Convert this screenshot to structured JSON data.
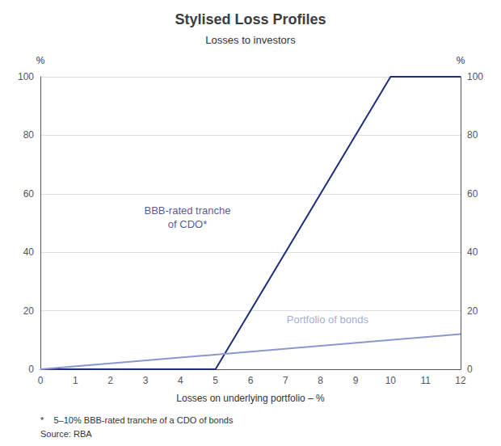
{
  "chart_data": {
    "type": "line",
    "title": "Stylised Loss Profiles",
    "subtitle": "Losses to investors",
    "xlabel": "Losses on underlying portfolio – %",
    "ylabel": "%",
    "y2label": "%",
    "xlim": [
      0,
      12
    ],
    "xticks": [
      0,
      1,
      2,
      3,
      4,
      5,
      6,
      7,
      8,
      9,
      10,
      11,
      12
    ],
    "ylim": [
      0,
      100
    ],
    "yticks": [
      0,
      20,
      40,
      60,
      80,
      100
    ],
    "y2lim": [
      0,
      100
    ],
    "y2ticks": [
      0,
      20,
      40,
      60,
      80,
      100
    ],
    "grid": true,
    "series": [
      {
        "x": [
          0,
          5,
          10,
          12
        ],
        "values": [
          0,
          0,
          100,
          100
        ],
        "color": "#1f2d7a"
      },
      {
        "x": [
          0,
          12
        ],
        "values": [
          0,
          12
        ],
        "color": "#8b96cc"
      }
    ],
    "annotations": [
      {
        "text": "BBB-rated tranche\nof CDO*",
        "x": 4.2,
        "y": 52,
        "color": "#1f2d7a"
      },
      {
        "text": "Portfolio of bonds",
        "x": 8.2,
        "y": 17,
        "color": "#8b96cc"
      }
    ],
    "footnotes": [
      "*    5–10% BBB-rated tranche of a CDO of bonds",
      "Source: RBA"
    ]
  }
}
